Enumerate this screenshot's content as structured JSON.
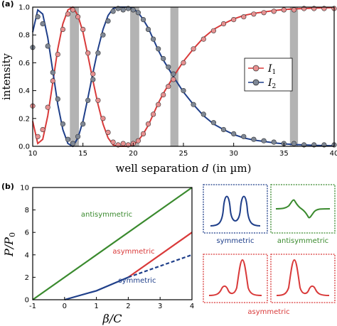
{
  "chart_data": [
    {
      "panel_label": "(a)",
      "type": "line",
      "xlabel_main": "well separation ",
      "xlabel_var": "d",
      "xlabel_unit": " (in µm)",
      "ylabel": "intensity",
      "xlim": [
        10,
        40
      ],
      "ylim": [
        0,
        1.0
      ],
      "x_ticks": [
        "10",
        "15",
        "20",
        "25",
        "30",
        "35",
        "40"
      ],
      "y_ticks": [
        "0.0",
        "0.2",
        "0.4",
        "0.6",
        "0.8",
        "1.0"
      ],
      "shaded_bands": [
        [
          13.7,
          14.6
        ],
        [
          19.7,
          20.6
        ],
        [
          23.7,
          24.5
        ],
        [
          35.6,
          36.4
        ]
      ],
      "legend": [
        {
          "name": "I",
          "sub": "1",
          "color": "#d93a3a"
        },
        {
          "name": "I",
          "sub": "2",
          "color": "#1f3f8a"
        }
      ],
      "series": [
        {
          "name": "I1",
          "color": "#d93a3a",
          "curve": [
            [
              10.0,
              0.18
            ],
            [
              10.5,
              0.02
            ],
            [
              11.0,
              0.05
            ],
            [
              11.5,
              0.22
            ],
            [
              12.0,
              0.46
            ],
            [
              12.5,
              0.7
            ],
            [
              13.0,
              0.88
            ],
            [
              13.5,
              0.98
            ],
            [
              14.0,
              1.0
            ],
            [
              14.5,
              0.94
            ],
            [
              15.0,
              0.82
            ],
            [
              15.5,
              0.65
            ],
            [
              16.0,
              0.47
            ],
            [
              16.5,
              0.3
            ],
            [
              17.0,
              0.16
            ],
            [
              17.5,
              0.06
            ],
            [
              18.0,
              0.01
            ],
            [
              18.5,
              0.0
            ],
            [
              19.0,
              0.0
            ],
            [
              19.5,
              0.0
            ],
            [
              20.0,
              0.01
            ],
            [
              20.5,
              0.04
            ],
            [
              21.0,
              0.09
            ],
            [
              21.5,
              0.15
            ],
            [
              22.0,
              0.23
            ],
            [
              22.5,
              0.31
            ],
            [
              23.0,
              0.38
            ],
            [
              23.5,
              0.44
            ],
            [
              24.0,
              0.5
            ],
            [
              25.0,
              0.61
            ],
            [
              26.0,
              0.7
            ],
            [
              27.0,
              0.78
            ],
            [
              28.0,
              0.84
            ],
            [
              29.0,
              0.88
            ],
            [
              30.0,
              0.915
            ],
            [
              31.0,
              0.94
            ],
            [
              32.0,
              0.955
            ],
            [
              33.0,
              0.965
            ],
            [
              34.0,
              0.975
            ],
            [
              35.0,
              0.982
            ],
            [
              36.0,
              0.987
            ],
            [
              37.0,
              0.99
            ],
            [
              38.0,
              0.993
            ],
            [
              39.0,
              0.995
            ],
            [
              40.0,
              0.996
            ]
          ],
          "points": [
            [
              10.0,
              0.29
            ],
            [
              10.5,
              0.07
            ],
            [
              11.0,
              0.12
            ],
            [
              11.5,
              0.28
            ],
            [
              12.0,
              0.47
            ],
            [
              12.5,
              0.66
            ],
            [
              13.0,
              0.84
            ],
            [
              13.5,
              0.95
            ],
            [
              14.0,
              0.98
            ],
            [
              14.5,
              0.93
            ],
            [
              15.0,
              0.84
            ],
            [
              15.5,
              0.67
            ],
            [
              16.0,
              0.52
            ],
            [
              16.5,
              0.33
            ],
            [
              17.0,
              0.2
            ],
            [
              17.5,
              0.1
            ],
            [
              18.0,
              0.03
            ],
            [
              18.5,
              0.01
            ],
            [
              19.0,
              0.02
            ],
            [
              19.5,
              0.01
            ],
            [
              20.0,
              0.02
            ],
            [
              20.5,
              0.04
            ],
            [
              21.0,
              0.09
            ],
            [
              21.5,
              0.16
            ],
            [
              22.0,
              0.23
            ],
            [
              22.5,
              0.3
            ],
            [
              23.0,
              0.37
            ],
            [
              23.5,
              0.43
            ],
            [
              24.0,
              0.48
            ],
            [
              25.0,
              0.6
            ],
            [
              26.0,
              0.7
            ],
            [
              27.0,
              0.77
            ],
            [
              28.0,
              0.83
            ],
            [
              29.0,
              0.88
            ],
            [
              30.0,
              0.91
            ],
            [
              31.0,
              0.93
            ],
            [
              32.0,
              0.95
            ],
            [
              33.0,
              0.96
            ],
            [
              34.0,
              0.97
            ],
            [
              35.0,
              0.98
            ],
            [
              36.0,
              0.98
            ],
            [
              37.0,
              0.99
            ],
            [
              38.0,
              0.99
            ],
            [
              39.0,
              0.99
            ],
            [
              40.0,
              0.99
            ]
          ]
        },
        {
          "name": "I2",
          "color": "#1f3f8a",
          "curve": [
            [
              10.0,
              0.82
            ],
            [
              10.5,
              0.98
            ],
            [
              11.0,
              0.95
            ],
            [
              11.5,
              0.78
            ],
            [
              12.0,
              0.54
            ],
            [
              12.5,
              0.3
            ],
            [
              13.0,
              0.12
            ],
            [
              13.5,
              0.02
            ],
            [
              14.0,
              0.0
            ],
            [
              14.5,
              0.06
            ],
            [
              15.0,
              0.18
            ],
            [
              15.5,
              0.35
            ],
            [
              16.0,
              0.53
            ],
            [
              16.5,
              0.7
            ],
            [
              17.0,
              0.84
            ],
            [
              17.5,
              0.94
            ],
            [
              18.0,
              0.99
            ],
            [
              18.5,
              1.0
            ],
            [
              19.0,
              1.0
            ],
            [
              19.5,
              1.0
            ],
            [
              20.0,
              0.99
            ],
            [
              20.5,
              0.96
            ],
            [
              21.0,
              0.91
            ],
            [
              21.5,
              0.85
            ],
            [
              22.0,
              0.77
            ],
            [
              22.5,
              0.69
            ],
            [
              23.0,
              0.62
            ],
            [
              23.5,
              0.56
            ],
            [
              24.0,
              0.5
            ],
            [
              25.0,
              0.39
            ],
            [
              26.0,
              0.3
            ],
            [
              27.0,
              0.22
            ],
            [
              28.0,
              0.16
            ],
            [
              29.0,
              0.12
            ],
            [
              30.0,
              0.085
            ],
            [
              31.0,
              0.06
            ],
            [
              32.0,
              0.045
            ],
            [
              33.0,
              0.035
            ],
            [
              34.0,
              0.025
            ],
            [
              35.0,
              0.018
            ],
            [
              36.0,
              0.013
            ],
            [
              37.0,
              0.01
            ],
            [
              38.0,
              0.007
            ],
            [
              39.0,
              0.005
            ],
            [
              40.0,
              0.004
            ]
          ],
          "points": [
            [
              10.0,
              0.71
            ],
            [
              10.5,
              0.93
            ],
            [
              11.0,
              0.88
            ],
            [
              11.5,
              0.72
            ],
            [
              12.0,
              0.53
            ],
            [
              12.5,
              0.34
            ],
            [
              13.0,
              0.16
            ],
            [
              13.5,
              0.05
            ],
            [
              14.0,
              0.02
            ],
            [
              14.5,
              0.07
            ],
            [
              15.0,
              0.16
            ],
            [
              15.5,
              0.33
            ],
            [
              16.0,
              0.48
            ],
            [
              16.5,
              0.67
            ],
            [
              17.0,
              0.8
            ],
            [
              17.5,
              0.9
            ],
            [
              18.0,
              0.97
            ],
            [
              18.5,
              0.99
            ],
            [
              19.0,
              0.98
            ],
            [
              19.5,
              0.99
            ],
            [
              20.0,
              0.98
            ],
            [
              20.5,
              0.96
            ],
            [
              21.0,
              0.91
            ],
            [
              21.5,
              0.84
            ],
            [
              22.0,
              0.77
            ],
            [
              22.5,
              0.7
            ],
            [
              23.0,
              0.63
            ],
            [
              23.5,
              0.57
            ],
            [
              24.0,
              0.52
            ],
            [
              25.0,
              0.4
            ],
            [
              26.0,
              0.3
            ],
            [
              27.0,
              0.23
            ],
            [
              28.0,
              0.17
            ],
            [
              29.0,
              0.12
            ],
            [
              30.0,
              0.09
            ],
            [
              31.0,
              0.07
            ],
            [
              32.0,
              0.05
            ],
            [
              33.0,
              0.04
            ],
            [
              34.0,
              0.03
            ],
            [
              35.0,
              0.02
            ],
            [
              36.0,
              0.02
            ],
            [
              37.0,
              0.01
            ],
            [
              38.0,
              0.01
            ],
            [
              39.0,
              0.01
            ],
            [
              40.0,
              0.01
            ]
          ]
        }
      ]
    },
    {
      "panel_label": "(b)",
      "type": "line",
      "ylabel": "P/P",
      "ylabel_sub": "0",
      "xlabel": "β/C",
      "xlim": [
        -1,
        4
      ],
      "ylim": [
        0,
        10
      ],
      "x_ticks": [
        "-1",
        "0",
        "1",
        "2",
        "3",
        "4"
      ],
      "y_ticks": [
        "0",
        "2",
        "4",
        "6",
        "8",
        "10"
      ],
      "series": [
        {
          "name": "antisymmetric",
          "color": "#3a8a2e",
          "style": "solid",
          "points": [
            [
              -1,
              0
            ],
            [
              4,
              10
            ]
          ]
        },
        {
          "name": "asymmetric",
          "color": "#d93a3a",
          "style": "solid",
          "points": [
            [
              2,
              2
            ],
            [
              4,
              6
            ]
          ]
        },
        {
          "name": "symmetric",
          "color": "#1f3f8a",
          "style": "solid",
          "points": [
            [
              0,
              0
            ],
            [
              1,
              0.8
            ],
            [
              2,
              2
            ]
          ]
        },
        {
          "name": "symmetric-continuation",
          "color": "#1f3f8a",
          "style": "dashed",
          "points": [
            [
              2,
              2
            ],
            [
              4,
              4
            ]
          ]
        }
      ],
      "annotations": [
        "antisymmetric",
        "asymmetric",
        "symmetric"
      ]
    }
  ],
  "mode_panels": [
    {
      "label": "symmetric",
      "color": "#1f3f8a"
    },
    {
      "label": "antisymmetric",
      "color": "#3a8a2e"
    },
    {
      "label": "asymmetric",
      "color": "#d93a3a"
    }
  ]
}
